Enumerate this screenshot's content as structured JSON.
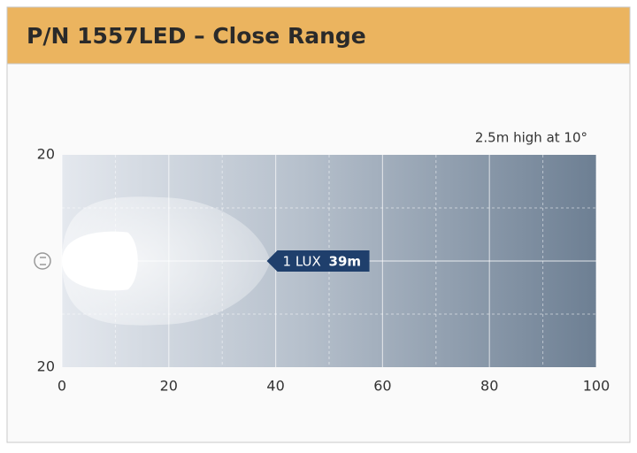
{
  "chart_data": {
    "type": "beam",
    "title": "P/N 1557LED – Close Range",
    "subtitle": "2.5m high at 10°",
    "xlim": [
      0,
      100
    ],
    "xticks": [
      0,
      20,
      40,
      60,
      80,
      100
    ],
    "ylim": [
      -20,
      20
    ],
    "yticks": [
      20,
      {
        "value": -20,
        "label": "20"
      }
    ],
    "grid": true,
    "annotation": {
      "prefix": "1 LUX",
      "value": 39,
      "value_label": "39m"
    }
  }
}
